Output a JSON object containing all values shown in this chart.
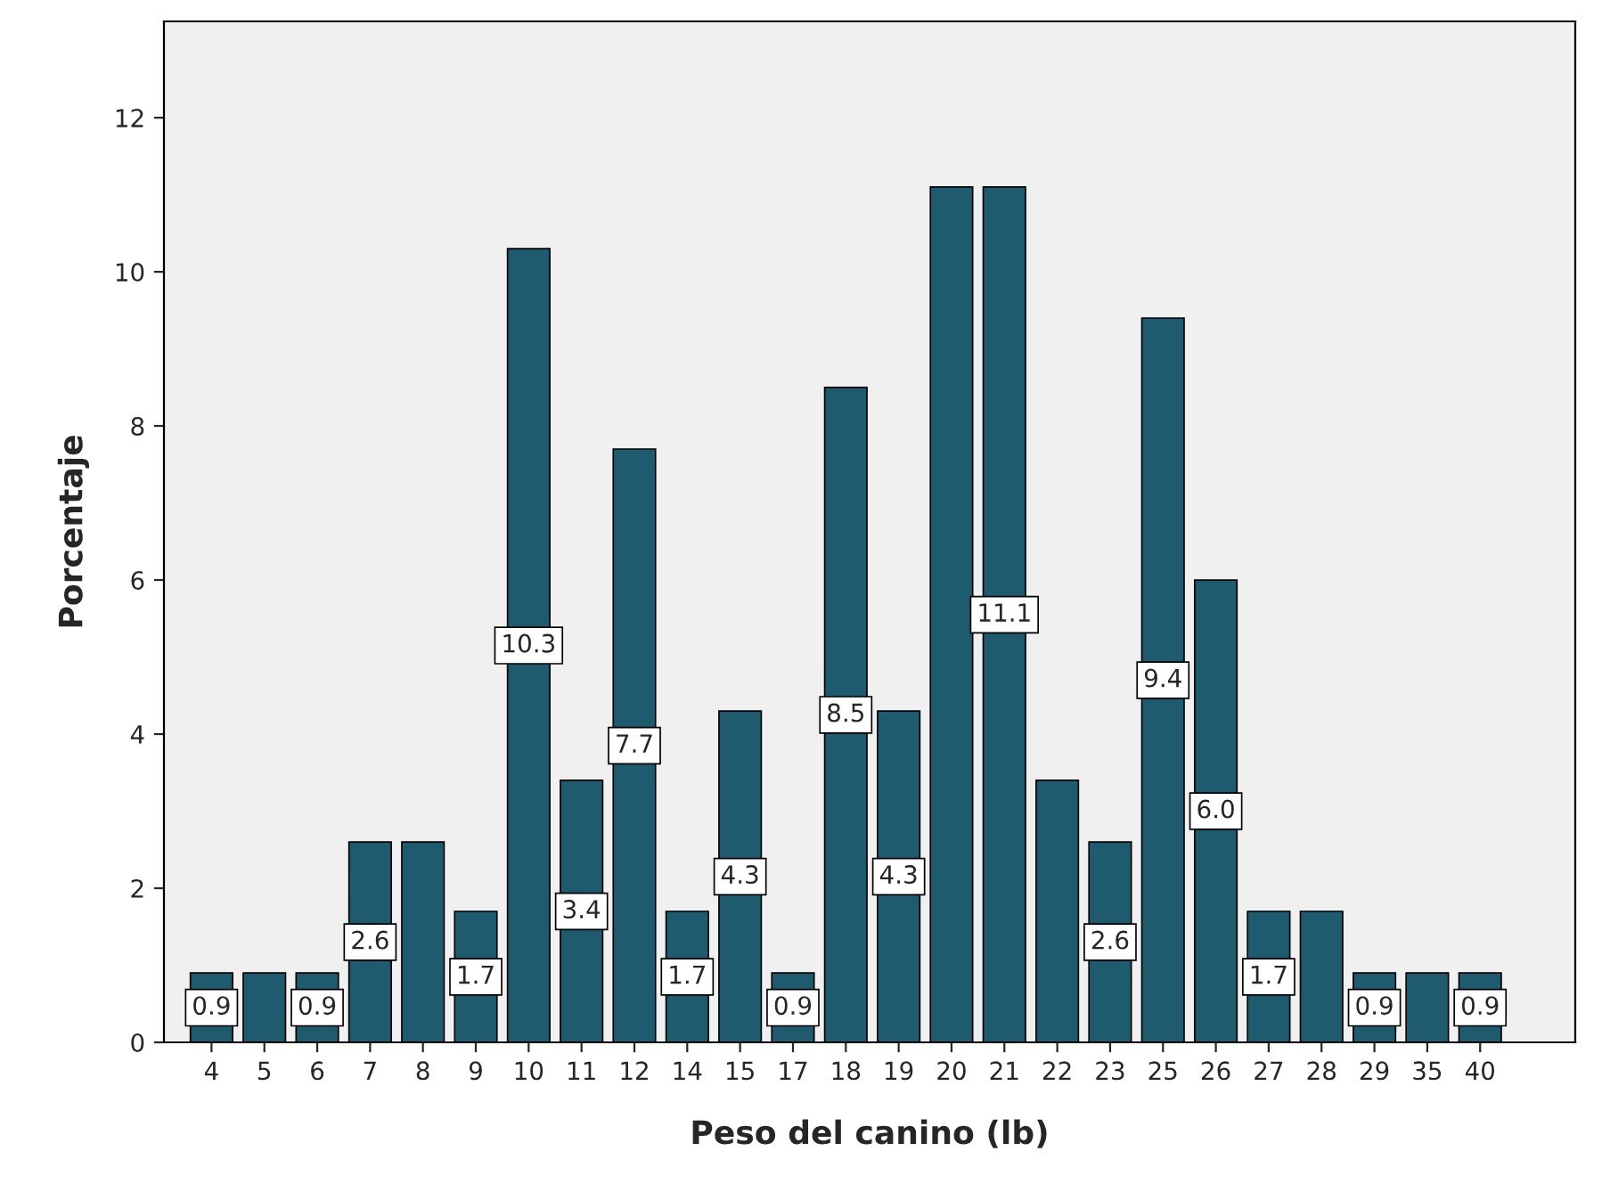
{
  "chart_data": {
    "type": "bar",
    "xlabel": "Peso del canino (lb)",
    "ylabel": "Porcentaje",
    "categories": [
      "4",
      "5",
      "6",
      "7",
      "8",
      "9",
      "10",
      "11",
      "12",
      "14",
      "15",
      "17",
      "18",
      "19",
      "20",
      "21",
      "22",
      "23",
      "25",
      "26",
      "27",
      "28",
      "29",
      "35",
      "40"
    ],
    "values": [
      0.9,
      0.9,
      0.9,
      2.6,
      2.6,
      1.7,
      10.3,
      3.4,
      7.7,
      1.7,
      4.3,
      0.9,
      8.5,
      4.3,
      11.1,
      11.1,
      3.4,
      2.6,
      9.4,
      6.0,
      1.7,
      1.7,
      0.9,
      0.9,
      0.9
    ],
    "value_labels": [
      "0.9",
      null,
      "0.9",
      "2.6",
      null,
      "1.7",
      "10.3",
      "3.4",
      "7.7",
      "1.7",
      "4.3",
      "0.9",
      "8.5",
      "4.3",
      null,
      "11.1",
      null,
      "2.6",
      "9.4",
      "6.0",
      "1.7",
      null,
      "0.9",
      null,
      "0.9"
    ],
    "color": "#1f5b6e",
    "ylim": [
      0,
      13.25
    ],
    "yticks": [
      0,
      2,
      4,
      6,
      8,
      10,
      12
    ],
    "grid": false,
    "legend": false
  }
}
